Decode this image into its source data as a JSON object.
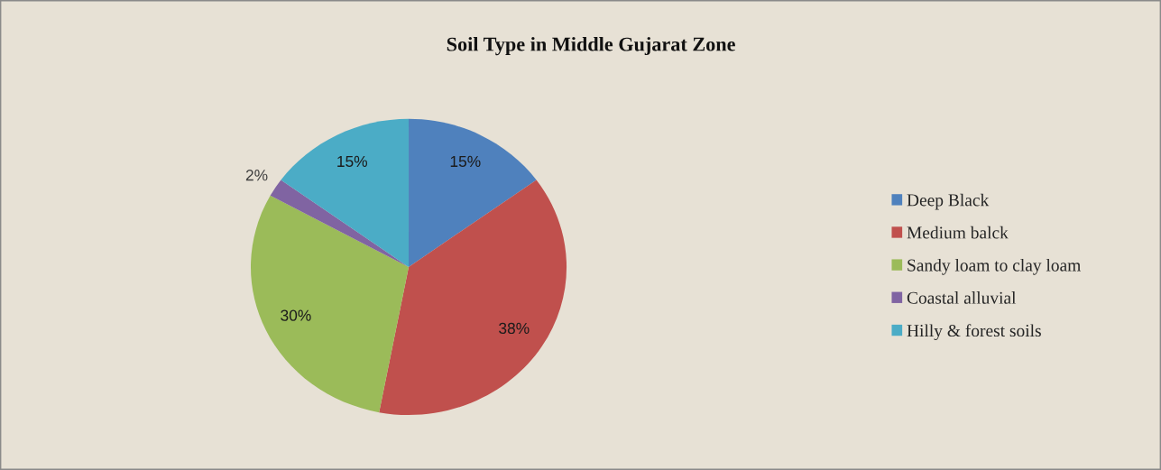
{
  "chart_data": {
    "type": "pie",
    "title": "Soil Type in Middle Gujarat Zone",
    "categories": [
      "Deep Black",
      "Medium balck",
      "Sandy loam to clay loam",
      "Coastal alluvial",
      "Hilly & forest soils"
    ],
    "values": [
      15,
      38,
      30,
      2,
      15
    ],
    "colors": [
      "#4f81bd",
      "#c0504d",
      "#9bbb59",
      "#8064a2",
      "#4bacc6"
    ],
    "value_labels": [
      "15%",
      "38%",
      "30%",
      "2%",
      "15%"
    ],
    "legend": "right"
  }
}
